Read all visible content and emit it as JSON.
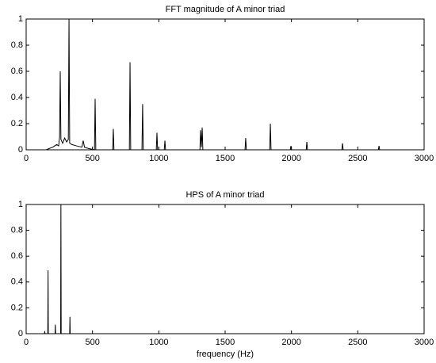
{
  "chart_data": [
    {
      "type": "line",
      "title": "FFT magnitude of A minor triad",
      "x": [
        0,
        150,
        200,
        230,
        245,
        252,
        257,
        262,
        275,
        290,
        305,
        318,
        323,
        328,
        345,
        380,
        420,
        430,
        440,
        470,
        515,
        520,
        525,
        652,
        657,
        662,
        778,
        783,
        788,
        873,
        878,
        883,
        981,
        986,
        991,
        1041,
        1046,
        1051,
        1310,
        1315,
        1321,
        1327,
        1332,
        1650,
        1655,
        1660,
        1836,
        1841,
        1846,
        1991,
        1996,
        2001,
        2111,
        2116,
        2121,
        2380,
        2385,
        2390,
        2655,
        2660,
        2665,
        3000
      ],
      "values": [
        0,
        0,
        0.02,
        0.04,
        0.03,
        0.1,
        0.6,
        0.08,
        0.05,
        0.09,
        0.06,
        0.08,
        1.0,
        0.05,
        0.04,
        0.03,
        0.02,
        0.07,
        0.02,
        0.01,
        0,
        0.39,
        0,
        0,
        0.16,
        0,
        0,
        0.67,
        0,
        0,
        0.35,
        0,
        0,
        0.13,
        0,
        0,
        0.07,
        0,
        0,
        0.15,
        0.02,
        0.17,
        0,
        0,
        0.09,
        0,
        0,
        0.2,
        0,
        0,
        0.03,
        0,
        0,
        0.06,
        0,
        0,
        0.05,
        0,
        0,
        0.03,
        0,
        0
      ],
      "color": "#000000",
      "xlim": [
        0,
        3000
      ],
      "xticks": [
        0,
        500,
        1000,
        1500,
        2000,
        2500,
        3000
      ],
      "ylim": [
        0,
        1
      ],
      "yticks": [
        0,
        0.2,
        0.4,
        0.6,
        0.8,
        1
      ]
    },
    {
      "type": "line",
      "title": "HPS of A minor triad",
      "xlabel": "frequency (Hz)",
      "x": [
        0,
        138,
        140,
        142,
        163,
        165,
        167,
        218,
        220,
        222,
        260,
        262,
        264,
        328,
        330,
        332,
        3000
      ],
      "values": [
        0,
        0,
        0.02,
        0,
        0,
        0.49,
        0,
        0,
        0.07,
        0,
        0,
        1.0,
        0,
        0,
        0.13,
        0,
        0
      ],
      "color": "#000000",
      "xlim": [
        0,
        3000
      ],
      "xticks": [
        0,
        500,
        1000,
        1500,
        2000,
        2500,
        3000
      ],
      "ylim": [
        0,
        1
      ],
      "yticks": [
        0,
        0.2,
        0.4,
        0.6,
        0.8,
        1
      ]
    }
  ]
}
